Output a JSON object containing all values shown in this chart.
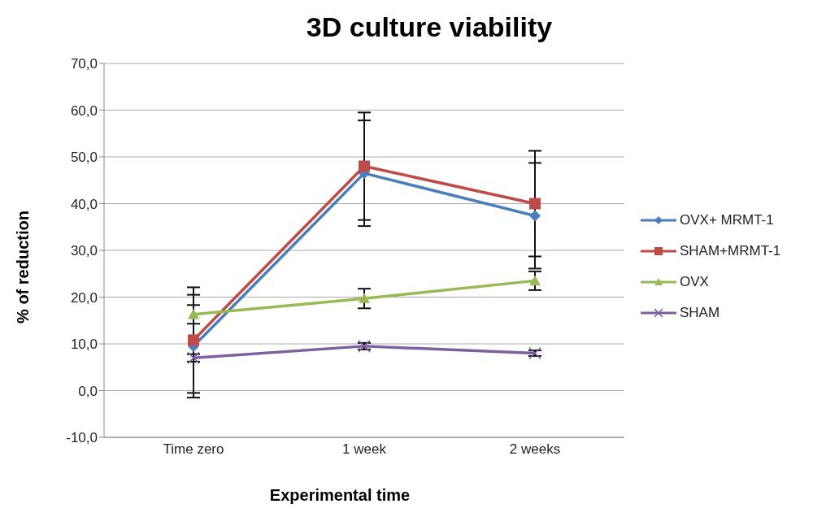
{
  "chart_data": {
    "type": "line",
    "title": "3D culture viability",
    "xlabel": "Experimental time",
    "ylabel": "% of reduction",
    "categories": [
      "Time zero",
      "1 week",
      "2 weeks"
    ],
    "series": [
      {
        "name": "OVX+ MRMT-1",
        "color": "#4a7ebb",
        "marker": "diamond",
        "values": [
          9.5,
          46.5,
          37.4
        ],
        "errors": [
          11,
          11.3,
          11.3
        ]
      },
      {
        "name": "SHAM+MRMT-1",
        "color": "#be4b48",
        "marker": "square",
        "values": [
          10.8,
          48,
          40
        ],
        "errors": [
          11.3,
          11.5,
          11.3
        ]
      },
      {
        "name": "OVX",
        "color": "#98b954",
        "marker": "triangle",
        "values": [
          16.3,
          19.7,
          23.5
        ],
        "errors": [
          2,
          2.1,
          2
        ]
      },
      {
        "name": "SHAM",
        "color": "#7d60a0",
        "marker": "cross",
        "values": [
          7,
          9.5,
          8
        ],
        "errors": [
          0.8,
          0.7,
          0.6
        ]
      }
    ],
    "ylim": [
      -10,
      70
    ],
    "yticks": [
      {
        "value": -10,
        "label": "-10,0"
      },
      {
        "value": 0,
        "label": "0,0"
      },
      {
        "value": 10,
        "label": "10,0"
      },
      {
        "value": 20,
        "label": "20,0"
      },
      {
        "value": 30,
        "label": "30,0"
      },
      {
        "value": 40,
        "label": "40,0"
      },
      {
        "value": 50,
        "label": "50,0"
      },
      {
        "value": 60,
        "label": "60,0"
      },
      {
        "value": 70,
        "label": "70,0"
      }
    ],
    "grid": "y",
    "legend": "right",
    "line_style": "solid"
  }
}
